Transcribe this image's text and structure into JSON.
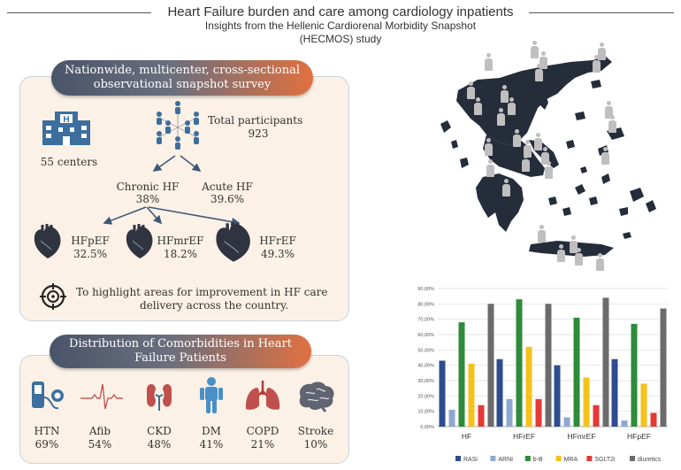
{
  "header": {
    "title": "Heart Failure burden and care among cardiology inpatients",
    "subtitle_line1": "Insights from the Hellenic Cardiorenal Morbidity Snapshot",
    "subtitle_line2": "(HECMOS) study"
  },
  "survey": {
    "banner_line1": "Nationwide, multicenter, cross-sectional",
    "banner_line2": "observational snapshot survey",
    "centers": "55 centers",
    "participants_label": "Total participants",
    "participants_value": "923",
    "chronic_label": "Chronic HF",
    "chronic_value": "38%",
    "acute_label": "Acute HF",
    "acute_value": "39.6%",
    "hfpef_label": "HFpEF",
    "hfpef_value": "32.5%",
    "hfmref_label": "HFmrEF",
    "hfmref_value": "18.2%",
    "hfref_label": "HFrEF",
    "hfref_value": "49.3%",
    "goal_line1": "To highlight areas for improvement in HF care",
    "goal_line2": "delivery across the country."
  },
  "comorbidities": {
    "banner_line1": "Distribution of Comorbidities in Heart",
    "banner_line2": "Failure Patients",
    "items": [
      {
        "label": "HTN",
        "value": "69%",
        "icon": "blood-pressure-icon"
      },
      {
        "label": "Afib",
        "value": "54%",
        "icon": "ecg-icon"
      },
      {
        "label": "CKD",
        "value": "48%",
        "icon": "kidney-icon"
      },
      {
        "label": "DM",
        "value": "41%",
        "icon": "person-icon"
      },
      {
        "label": "COPD",
        "value": "21%",
        "icon": "lungs-icon"
      },
      {
        "label": "Stroke",
        "value": "10%",
        "icon": "brain-icon"
      }
    ]
  },
  "colors": {
    "RASi": "#2e4d8f",
    "ARNI": "#8fa8d2",
    "b-B": "#2e8b3a",
    "MRA": "#f5c11b",
    "SGLT2i": "#e53935",
    "diuretics": "#6b6b6b",
    "icon_blue": "#3d6f9e",
    "map_dark": "#252d3b"
  },
  "chart_data": {
    "type": "bar",
    "categories": [
      "HF",
      "HFrEF",
      "HFmrEF",
      "HFpEF"
    ],
    "y_ticks": [
      "0,00%",
      "10,00%",
      "20,00%",
      "30,00%",
      "40,00%",
      "50,00%",
      "60,00%",
      "70,00%",
      "80,00%",
      "90,00%"
    ],
    "ylim": [
      0,
      90
    ],
    "grid": true,
    "legend_position": "bottom",
    "series": [
      {
        "name": "RASi",
        "values": [
          43,
          44,
          40,
          44
        ]
      },
      {
        "name": "ARNI",
        "values": [
          11,
          18,
          6,
          4
        ]
      },
      {
        "name": "b-B",
        "values": [
          68,
          83,
          71,
          67
        ]
      },
      {
        "name": "MRA",
        "values": [
          41,
          52,
          32,
          28
        ]
      },
      {
        "name": "SGLT2i",
        "values": [
          14,
          18,
          14,
          9
        ]
      },
      {
        "name": "diuretics",
        "values": [
          80,
          80,
          84,
          77
        ]
      }
    ]
  }
}
